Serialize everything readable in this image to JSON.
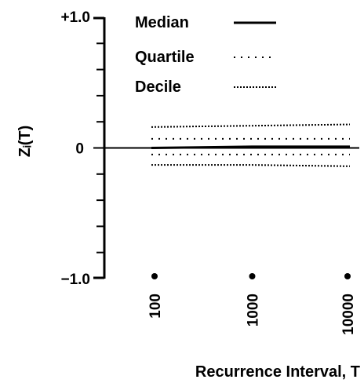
{
  "chart_data": {
    "type": "line",
    "xlabel": "Recurrence Interval, T",
    "ylabel": "Zᵢ(T)",
    "x_scale": "log",
    "xlim": [
      100,
      10000
    ],
    "ylim": [
      -1.0,
      1.0
    ],
    "x": [
      100,
      1000,
      10000
    ],
    "x_tick_labels": [
      "100",
      "1000",
      "10000"
    ],
    "y_tick_labels": [
      "+1.0",
      "0",
      "-1.0"
    ],
    "series": [
      {
        "name": "Median",
        "style": "solid",
        "values": [
          0.0,
          0.01,
          0.01
        ]
      },
      {
        "name": "Quartile",
        "style": "sparse-dotted",
        "values": [
          0.07,
          0.07,
          0.07
        ]
      },
      {
        "name": "Quartile",
        "style": "sparse-dotted",
        "values": [
          -0.05,
          -0.05,
          -0.05
        ]
      },
      {
        "name": "Decile",
        "style": "dense-dotted",
        "values": [
          0.16,
          0.17,
          0.18
        ]
      },
      {
        "name": "Decile",
        "style": "dense-dotted",
        "values": [
          -0.13,
          -0.13,
          -0.14
        ]
      }
    ],
    "legend": {
      "placement": "top",
      "entries": [
        {
          "label": "Median",
          "style": "solid"
        },
        {
          "label": "Quartile",
          "style": "sparse-dotted"
        },
        {
          "label": "Decile",
          "style": "dense-dotted"
        }
      ]
    },
    "grid": false,
    "colors": {
      "ink": "#000000",
      "background": "#ffffff"
    }
  }
}
